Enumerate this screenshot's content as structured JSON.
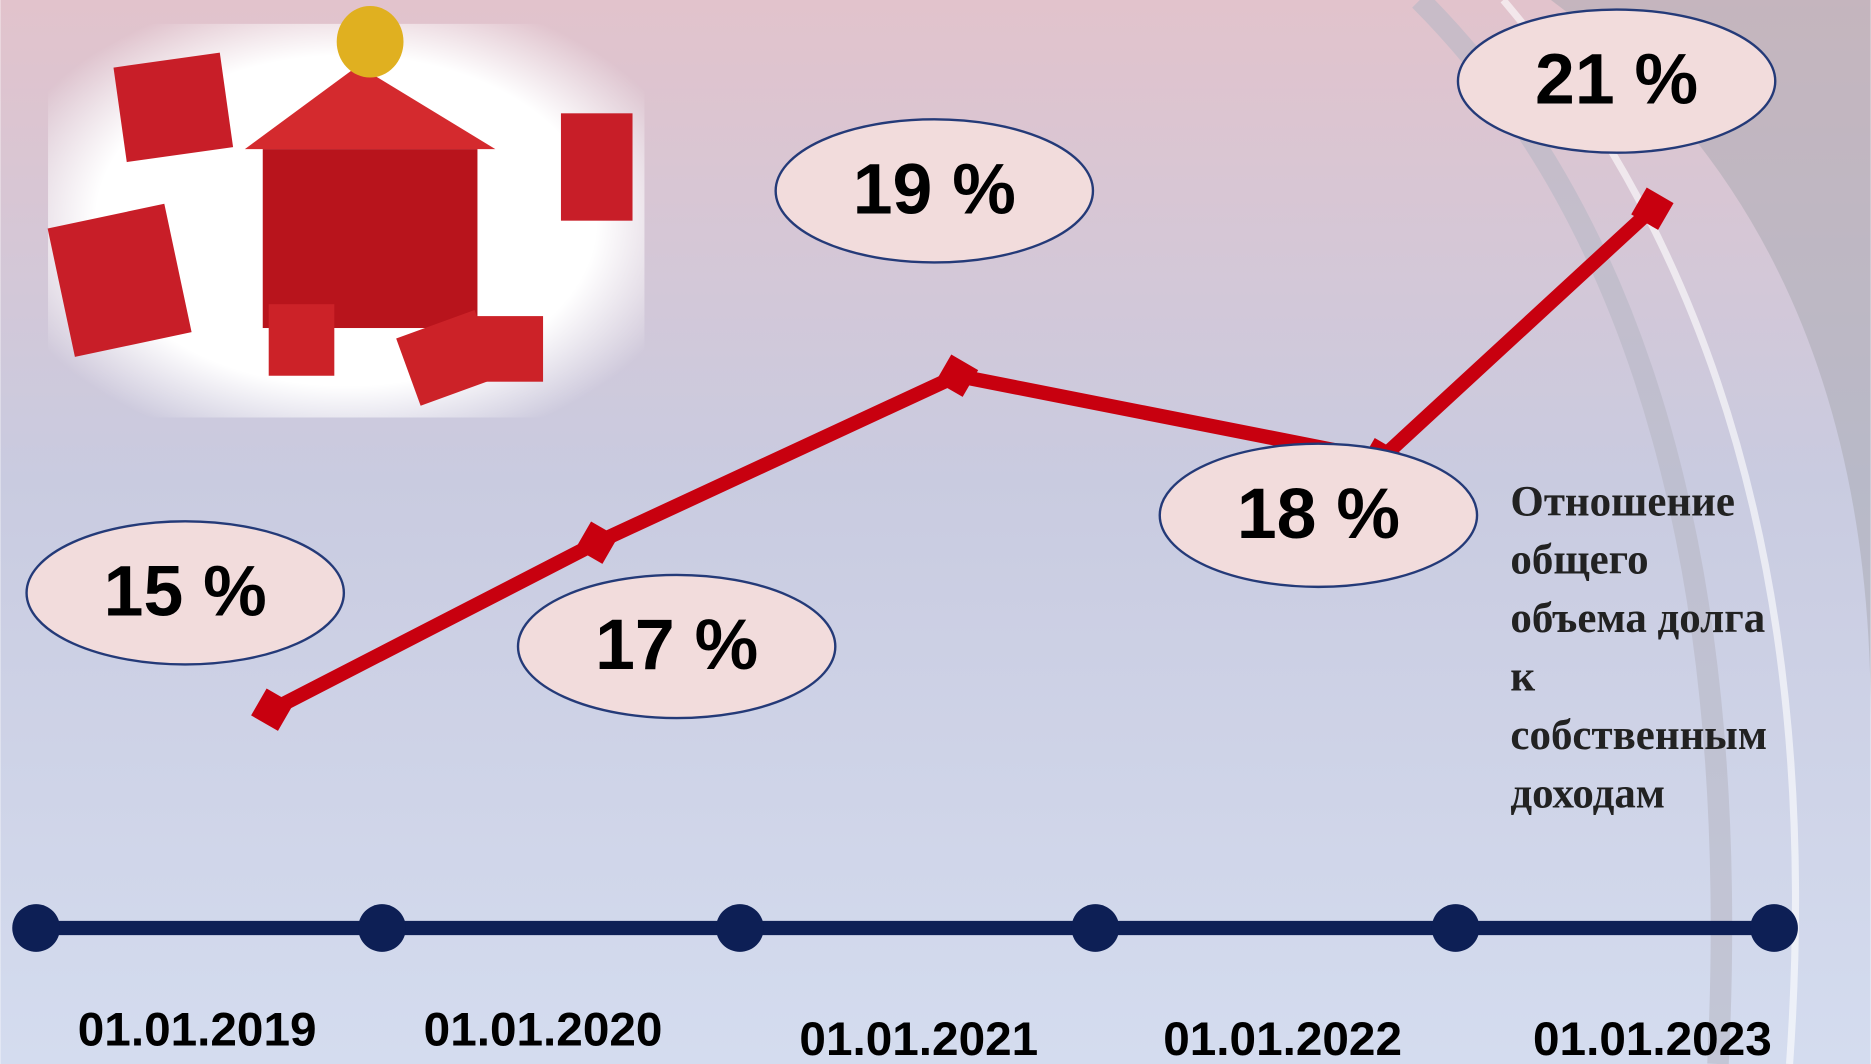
{
  "chart_data": {
    "type": "line",
    "categories": [
      "01.01.2019",
      "01.01.2020",
      "01.01.2021",
      "01.01.2022",
      "01.01.2023"
    ],
    "values": [
      15,
      17,
      19,
      18,
      21
    ],
    "value_labels": [
      "15 %",
      "17 %",
      "19 %",
      "18 %",
      "21 %"
    ],
    "color": "#c8000f",
    "annotation": [
      "Отношение",
      "общего",
      "объема долга",
      "к",
      "собственным",
      "доходам"
    ]
  }
}
